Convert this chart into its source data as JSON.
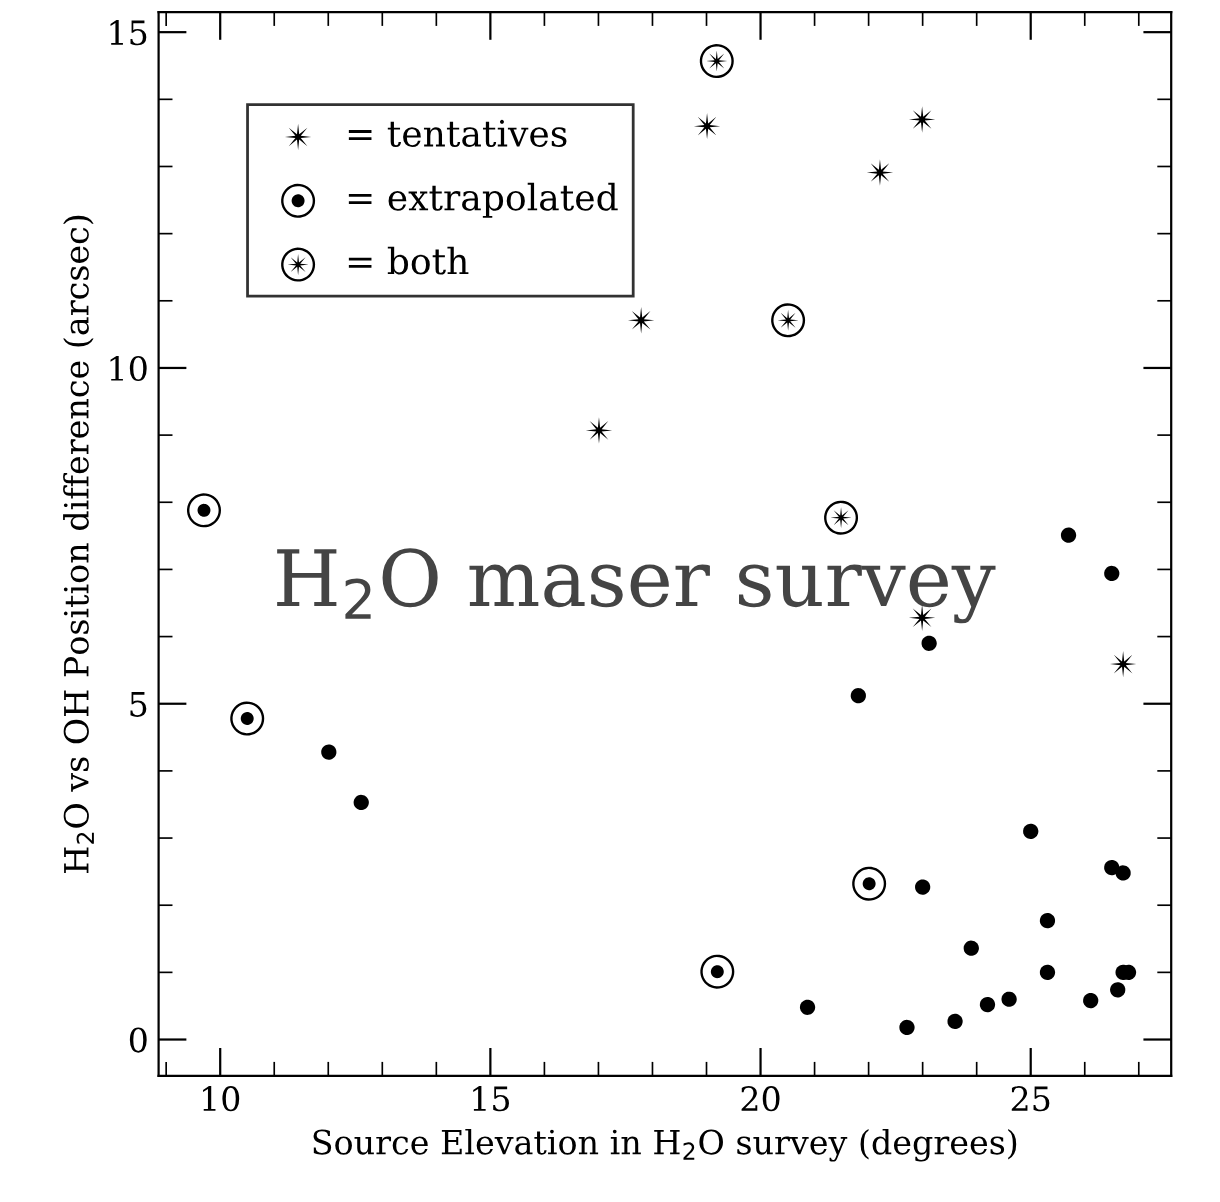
{
  "chart_data": {
    "type": "scatter",
    "xlabel": "Source Elevation in H$_{2}$O survey (degrees)",
    "ylabel": "H$_{2}$O vs OH Position difference (arcsec)",
    "annotations": [
      "H$_{2}$O maser survey"
    ],
    "xlim": [
      8.86,
      27.6
    ],
    "ylim": [
      -0.54,
      15.3
    ],
    "xticks": [
      10,
      15,
      20,
      25
    ],
    "yticks": [
      0,
      5,
      10,
      15
    ],
    "grid": false,
    "legend": "top left",
    "series": [
      {
        "name": "= tentatives",
        "color": "#000000",
        "marker": "star",
        "x": [
          17.01,
          17.79,
          19.01,
          22.21,
          22.99,
          22.99,
          26.71
        ],
        "values": [
          9.07,
          10.71,
          13.6,
          12.91,
          13.7,
          6.28,
          5.59
        ]
      },
      {
        "name": "= extrapolated",
        "color": "#000000",
        "marker": [
          "circle",
          "circle"
        ],
        "x": [
          9.7,
          10.5,
          19.2,
          22.01
        ],
        "values": [
          7.88,
          4.78,
          1.01,
          2.32
        ]
      },
      {
        "name": "= both",
        "color": "#000000",
        "marker": [
          "star",
          "circle"
        ],
        "x": [
          19.19,
          20.51,
          21.49
        ],
        "values": [
          14.57,
          10.71,
          7.77
        ]
      },
      {
        "color": "#000000",
        "marker": "circle",
        "x": [
          12.01,
          12.61,
          20.87,
          21.81,
          22.71,
          23.0,
          23.12,
          23.6,
          23.9,
          24.2,
          24.6,
          25.0,
          25.31,
          25.31,
          25.7,
          26.11,
          26.5,
          26.5,
          26.71,
          26.61,
          26.71,
          26.81
        ],
        "values": [
          4.28,
          3.53,
          0.48,
          5.12,
          0.18,
          2.27,
          5.9,
          0.27,
          1.36,
          0.52,
          0.6,
          3.1,
          1.77,
          1.0,
          7.51,
          0.58,
          6.94,
          2.56,
          2.48,
          0.74,
          1.0,
          1.0
        ]
      }
    ]
  }
}
